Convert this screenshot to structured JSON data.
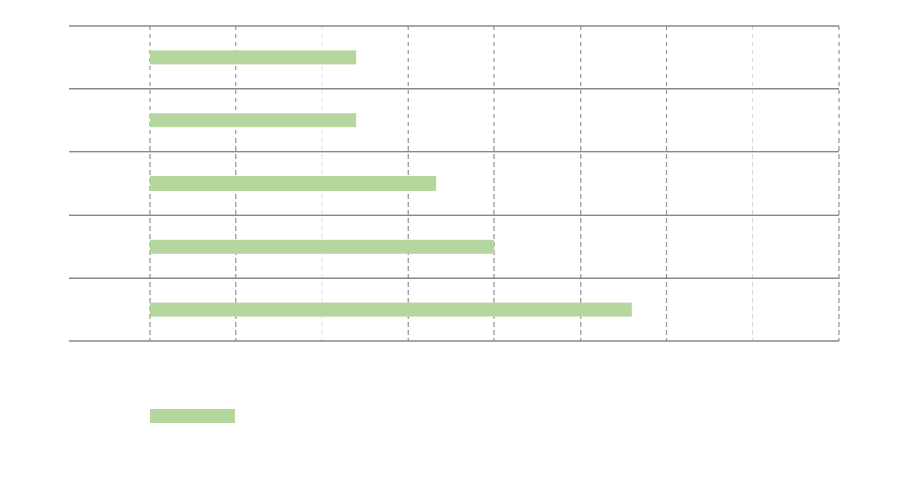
{
  "chart_data": {
    "type": "bar",
    "orientation": "horizontal",
    "categories": [
      null,
      null,
      null,
      null,
      null
    ],
    "series": [
      {
        "color": "#b5d69c",
        "values": [
          2.4,
          2.4,
          3.33,
          4.0,
          5.6
        ]
      }
    ],
    "xlim": [
      0,
      8
    ],
    "xticks": [
      0,
      1,
      2,
      3,
      4,
      5,
      6,
      7,
      8
    ],
    "grid": true,
    "legend": "bottom-left"
  }
}
